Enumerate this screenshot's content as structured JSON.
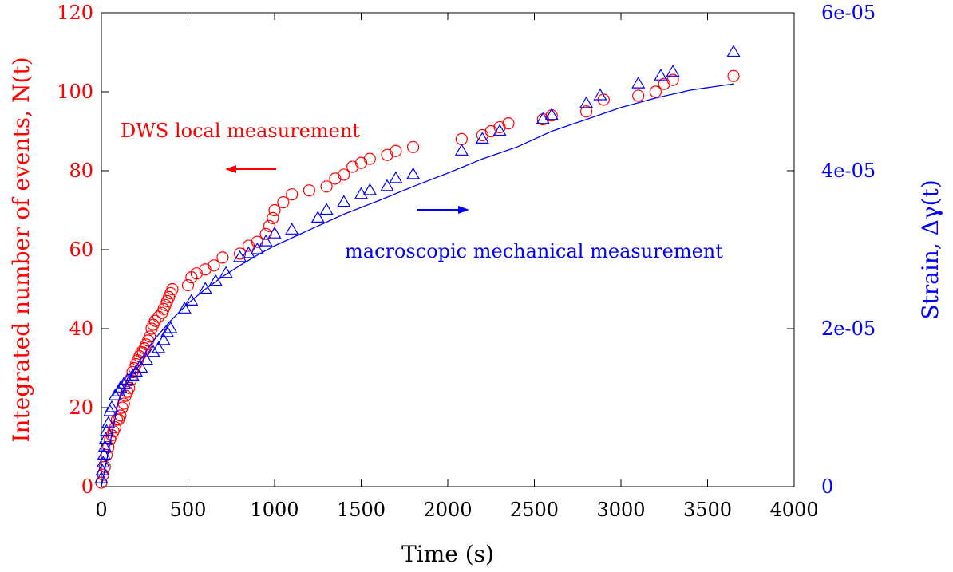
{
  "chart_data": {
    "type": "scatter",
    "xlabel": "Time (s)",
    "ylabel_left": "Integrated number of events, N(t)",
    "ylabel_right": "Strain, Δγ(t)",
    "xlim": [
      0,
      4000
    ],
    "ylim_left": [
      0,
      120
    ],
    "ylim_right": [
      0,
      6e-05
    ],
    "x_ticks": [
      "0",
      "500",
      "1000",
      "1500",
      "2000",
      "2500",
      "3000",
      "3500",
      "4000"
    ],
    "y_left_ticks": [
      "0",
      "20",
      "40",
      "60",
      "80",
      "100",
      "120"
    ],
    "y_right_ticks": [
      "0",
      "2e-05",
      "4e-05",
      "6e-05"
    ],
    "colors": {
      "left": "#ff0000",
      "right": "#0000ff",
      "axes": "#000000"
    },
    "annotations": [
      {
        "text": "DWS local measurement",
        "color": "#ff0000",
        "arrow": "left"
      },
      {
        "text": "macroscopic mechanical measurement",
        "color": "#0000ff",
        "arrow": "right"
      }
    ],
    "series": [
      {
        "name": "DWS local measurement",
        "axis": "left",
        "marker": "circle",
        "color": "#ff0000",
        "points": [
          [
            0,
            1
          ],
          [
            10,
            3
          ],
          [
            20,
            5
          ],
          [
            30,
            8
          ],
          [
            40,
            10
          ],
          [
            50,
            12
          ],
          [
            60,
            13
          ],
          [
            70,
            14
          ],
          [
            80,
            15
          ],
          [
            90,
            17
          ],
          [
            100,
            17
          ],
          [
            110,
            18
          ],
          [
            120,
            20
          ],
          [
            130,
            21
          ],
          [
            140,
            23
          ],
          [
            150,
            24
          ],
          [
            160,
            25
          ],
          [
            170,
            27
          ],
          [
            180,
            29
          ],
          [
            190,
            30
          ],
          [
            200,
            31
          ],
          [
            210,
            32
          ],
          [
            220,
            33
          ],
          [
            230,
            34
          ],
          [
            240,
            34
          ],
          [
            250,
            35
          ],
          [
            260,
            36
          ],
          [
            270,
            37
          ],
          [
            280,
            38
          ],
          [
            290,
            40
          ],
          [
            300,
            41
          ],
          [
            310,
            42
          ],
          [
            330,
            43
          ],
          [
            350,
            44
          ],
          [
            360,
            45
          ],
          [
            370,
            46
          ],
          [
            380,
            47
          ],
          [
            390,
            48
          ],
          [
            400,
            49
          ],
          [
            410,
            50
          ],
          [
            500,
            51
          ],
          [
            520,
            53
          ],
          [
            550,
            54
          ],
          [
            600,
            55
          ],
          [
            650,
            56
          ],
          [
            700,
            58
          ],
          [
            800,
            59
          ],
          [
            850,
            61
          ],
          [
            900,
            62
          ],
          [
            950,
            64
          ],
          [
            970,
            66
          ],
          [
            990,
            68
          ],
          [
            1000,
            70
          ],
          [
            1050,
            72
          ],
          [
            1100,
            74
          ],
          [
            1200,
            75
          ],
          [
            1300,
            76
          ],
          [
            1350,
            78
          ],
          [
            1400,
            79
          ],
          [
            1450,
            81
          ],
          [
            1500,
            82
          ],
          [
            1550,
            83
          ],
          [
            1650,
            84
          ],
          [
            1700,
            85
          ],
          [
            1800,
            86
          ],
          [
            2080,
            88
          ],
          [
            2200,
            89
          ],
          [
            2250,
            90
          ],
          [
            2300,
            91
          ],
          [
            2350,
            92
          ],
          [
            2550,
            93
          ],
          [
            2600,
            94
          ],
          [
            2800,
            95
          ],
          [
            2900,
            98
          ],
          [
            3100,
            99
          ],
          [
            3200,
            100
          ],
          [
            3250,
            102
          ],
          [
            3300,
            103
          ],
          [
            3650,
            104
          ]
        ]
      },
      {
        "name": "macroscopic mechanical measurement",
        "axis": "right",
        "marker": "triangle",
        "color": "#0000ff",
        "points": [
          [
            0,
            1e-06
          ],
          [
            5,
            2e-06
          ],
          [
            10,
            3e-06
          ],
          [
            15,
            4e-06
          ],
          [
            20,
            5e-06
          ],
          [
            25,
            6e-06
          ],
          [
            30,
            7e-06
          ],
          [
            40,
            8e-06
          ],
          [
            50,
            9.5e-06
          ],
          [
            60,
            1e-05
          ],
          [
            80,
            1.15e-05
          ],
          [
            100,
            1.2e-05
          ],
          [
            110,
            1.25e-05
          ],
          [
            130,
            1.3e-05
          ],
          [
            150,
            1.35e-05
          ],
          [
            180,
            1.4e-05
          ],
          [
            200,
            1.45e-05
          ],
          [
            230,
            1.5e-05
          ],
          [
            260,
            1.6e-05
          ],
          [
            300,
            1.7e-05
          ],
          [
            330,
            1.75e-05
          ],
          [
            360,
            1.85e-05
          ],
          [
            380,
            1.95e-05
          ],
          [
            400,
            2e-05
          ],
          [
            480,
            2.25e-05
          ],
          [
            520,
            2.35e-05
          ],
          [
            600,
            2.5e-05
          ],
          [
            660,
            2.6e-05
          ],
          [
            720,
            2.7e-05
          ],
          [
            800,
            2.9e-05
          ],
          [
            850,
            2.95e-05
          ],
          [
            900,
            3e-05
          ],
          [
            950,
            3.1e-05
          ],
          [
            1000,
            3.2e-05
          ],
          [
            1100,
            3.25e-05
          ],
          [
            1250,
            3.4e-05
          ],
          [
            1300,
            3.5e-05
          ],
          [
            1400,
            3.6e-05
          ],
          [
            1500,
            3.7e-05
          ],
          [
            1550,
            3.75e-05
          ],
          [
            1650,
            3.8e-05
          ],
          [
            1700,
            3.9e-05
          ],
          [
            1800,
            3.95e-05
          ],
          [
            2080,
            4.25e-05
          ],
          [
            2200,
            4.4e-05
          ],
          [
            2300,
            4.5e-05
          ],
          [
            2550,
            4.65e-05
          ],
          [
            2600,
            4.7e-05
          ],
          [
            2800,
            4.85e-05
          ],
          [
            2880,
            4.95e-05
          ],
          [
            3100,
            5.1e-05
          ],
          [
            3230,
            5.2e-05
          ],
          [
            3300,
            5.25e-05
          ],
          [
            3650,
            5.5e-05
          ]
        ]
      },
      {
        "name": "fit",
        "axis": "right",
        "marker": "line",
        "color": "#0000ff",
        "points": [
          [
            0,
            0
          ],
          [
            100,
            1.1e-05
          ],
          [
            200,
            1.52e-05
          ],
          [
            300,
            1.85e-05
          ],
          [
            400,
            2.1e-05
          ],
          [
            500,
            2.32e-05
          ],
          [
            600,
            2.5e-05
          ],
          [
            700,
            2.66e-05
          ],
          [
            800,
            2.8e-05
          ],
          [
            900,
            2.93e-05
          ],
          [
            1000,
            3.05e-05
          ],
          [
            1200,
            3.25e-05
          ],
          [
            1400,
            3.45e-05
          ],
          [
            1600,
            3.62e-05
          ],
          [
            1800,
            3.8e-05
          ],
          [
            2000,
            3.97e-05
          ],
          [
            2200,
            4.15e-05
          ],
          [
            2400,
            4.3e-05
          ],
          [
            2600,
            4.5e-05
          ],
          [
            2800,
            4.65e-05
          ],
          [
            3000,
            4.8e-05
          ],
          [
            3200,
            4.92e-05
          ],
          [
            3400,
            5.02e-05
          ],
          [
            3650,
            5.1e-05
          ]
        ]
      }
    ]
  }
}
